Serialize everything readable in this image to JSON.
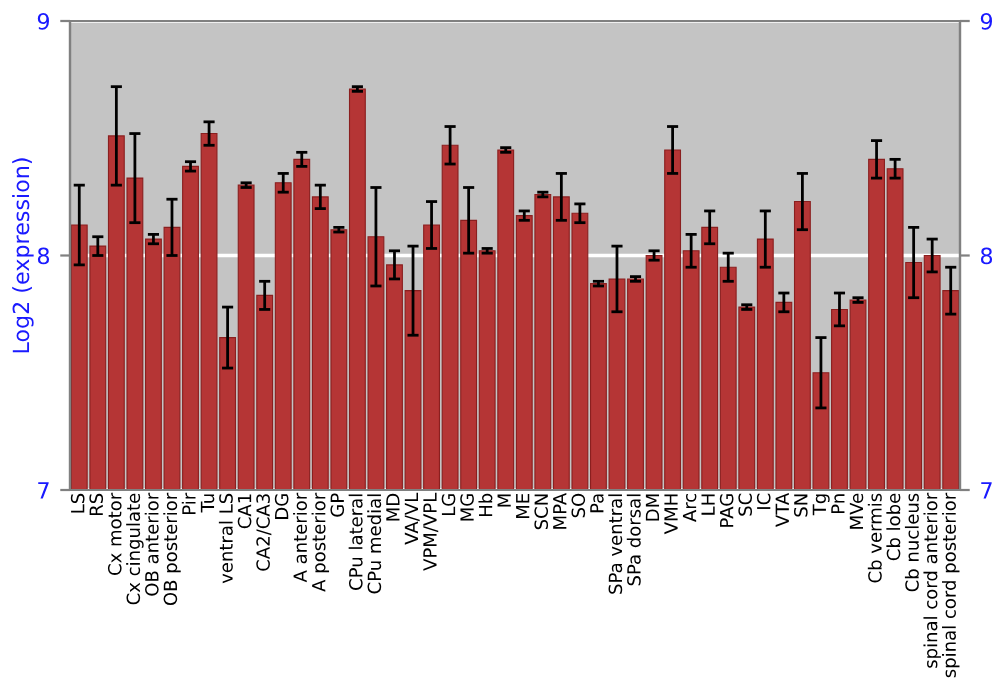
{
  "chart_data": {
    "type": "bar",
    "ylabel": "Log2 (expression)",
    "categories": [
      "LS",
      "RS",
      "Cx motor",
      "Cx cingulate",
      "OB anterior",
      "OB posterior",
      "Pir",
      "Tu",
      "ventral LS",
      "CA1",
      "CA2/CA3",
      "DG",
      "A anterior",
      "A posterior",
      "GP",
      "CPu lateral",
      "CPu medial",
      "MD",
      "VA/VL",
      "VPM/VPL",
      "LG",
      "MG",
      "Hb",
      "M",
      "ME",
      "SCN",
      "MPA",
      "SO",
      "Pa",
      "SPa ventral",
      "SPa dorsal",
      "DM",
      "VMH",
      "Arc",
      "LH",
      "PAG",
      "SC",
      "IC",
      "VTA",
      "SN",
      "Tg",
      "Pn",
      "MVe",
      "Cb vermis",
      "Cb lobe",
      "Cb nucleus",
      "spinal cord anterior",
      "spinal cord posterior"
    ],
    "values": [
      8.13,
      8.04,
      8.51,
      8.33,
      8.07,
      8.12,
      8.38,
      8.52,
      7.65,
      8.3,
      7.83,
      8.31,
      8.41,
      8.25,
      8.11,
      8.71,
      8.08,
      7.96,
      7.85,
      8.13,
      8.47,
      8.15,
      8.02,
      8.45,
      8.17,
      8.26,
      8.25,
      8.18,
      7.88,
      7.9,
      7.9,
      8.0,
      8.45,
      8.02,
      8.12,
      7.95,
      7.78,
      8.07,
      7.8,
      8.23,
      7.5,
      7.77,
      7.81,
      8.41,
      8.37,
      7.97,
      8.0,
      7.85
    ],
    "errors": [
      0.17,
      0.04,
      0.21,
      0.19,
      0.02,
      0.12,
      0.02,
      0.05,
      0.13,
      0.01,
      0.06,
      0.04,
      0.03,
      0.05,
      0.01,
      0.01,
      0.21,
      0.06,
      0.19,
      0.1,
      0.08,
      0.14,
      0.01,
      0.01,
      0.02,
      0.01,
      0.1,
      0.04,
      0.01,
      0.14,
      0.01,
      0.02,
      0.1,
      0.07,
      0.07,
      0.06,
      0.01,
      0.12,
      0.04,
      0.12,
      0.15,
      0.07,
      0.01,
      0.08,
      0.04,
      0.15,
      0.07,
      0.1
    ],
    "color": "#b53535",
    "ylim": [
      7,
      9
    ],
    "yticks": [
      7,
      8,
      9
    ],
    "y2lim": [
      7,
      9
    ],
    "y2ticks": [
      7,
      8,
      9
    ],
    "grid": "y"
  }
}
